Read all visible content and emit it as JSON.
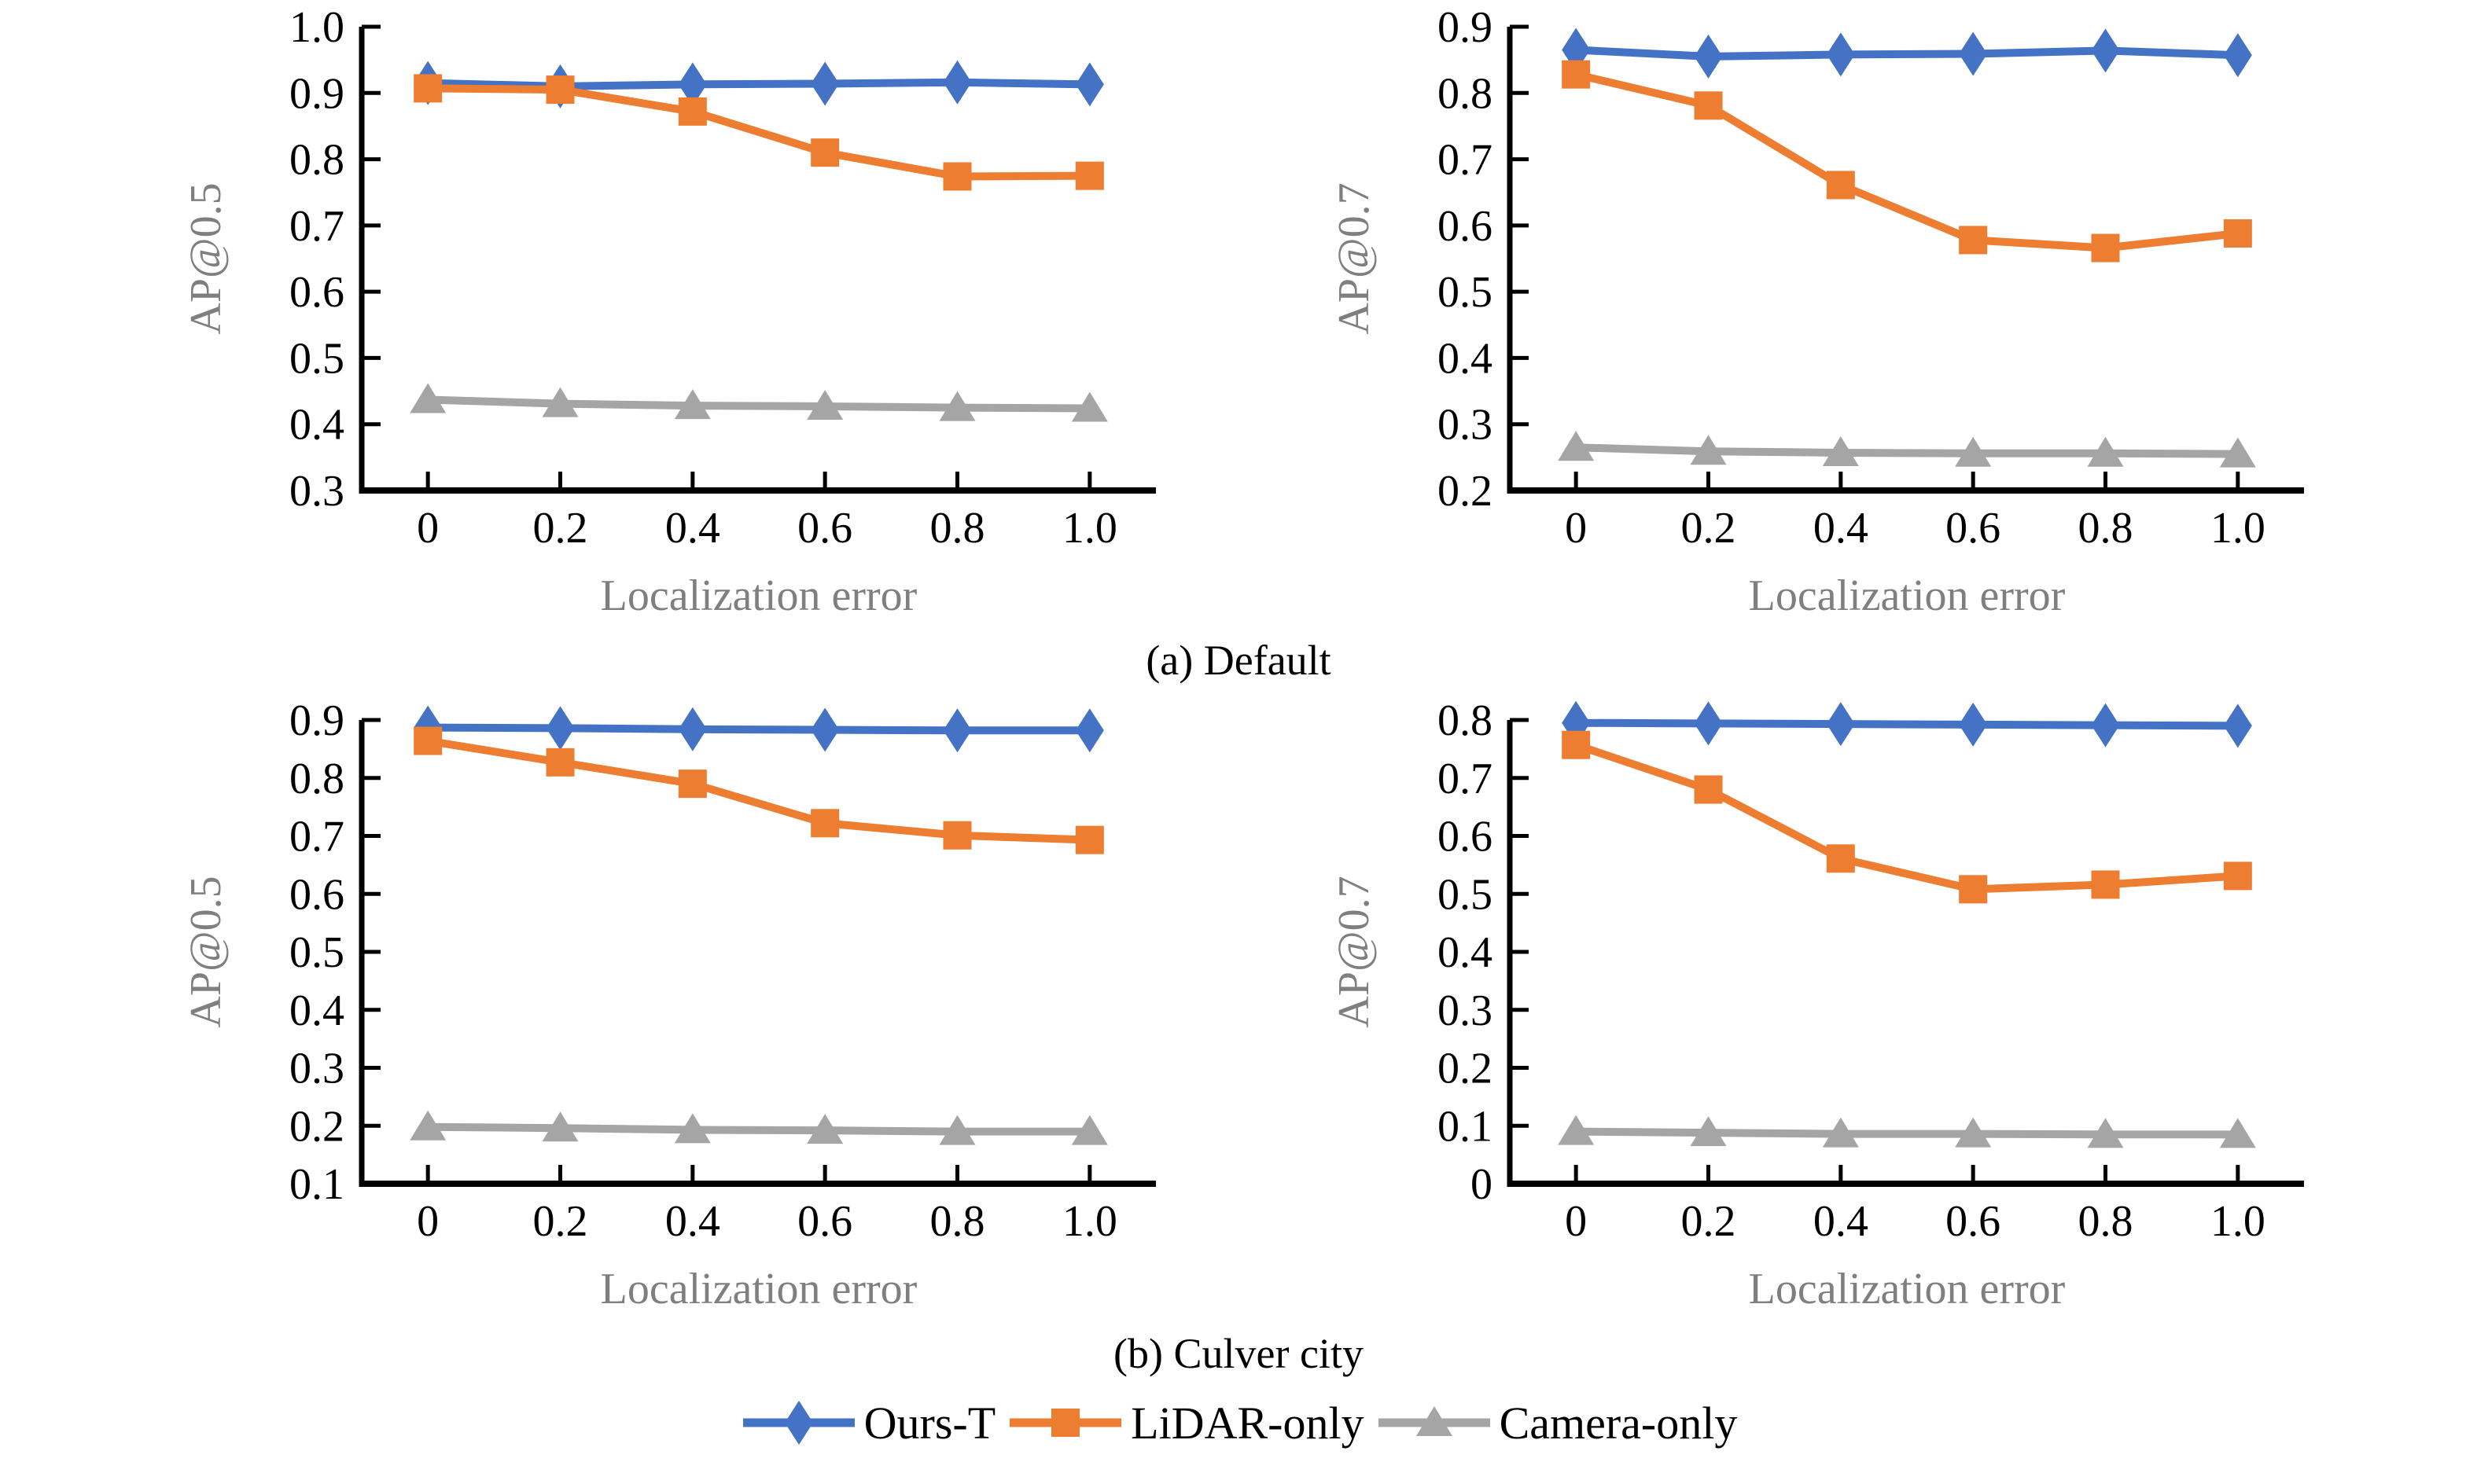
{
  "figure": {
    "captions": {
      "a": "(a) Default",
      "b": "(b) Culver city"
    },
    "legend": [
      {
        "name": "Ours-T",
        "marker": "diamond",
        "color": "#4472C4"
      },
      {
        "name": "LiDAR-only",
        "marker": "square",
        "color": "#ED7D31"
      },
      {
        "name": "Camera-only",
        "marker": "triangle",
        "color": "#A5A5A5"
      }
    ],
    "legend_position": "bottom"
  },
  "colors": {
    "axis": "#000000",
    "tick_label": "#000000",
    "axis_title": "#7F7F7F",
    "background": "#FFFFFF",
    "series_blue": "#4472C4",
    "series_orange": "#ED7D31",
    "series_gray": "#A5A5A5"
  },
  "chart_data": [
    {
      "type": "line",
      "panel": "(a) Default",
      "xlabel": "Localization error",
      "ylabel": "AP@0.5",
      "x": [
        0,
        0.2,
        0.4,
        0.6,
        0.8,
        1.0
      ],
      "xtick_labels": [
        "0",
        "0.2",
        "0.4",
        "0.6",
        "0.8",
        "1.0"
      ],
      "ylim": [
        0.3,
        1.0
      ],
      "ytick_step": 0.1,
      "grid": false,
      "series": [
        {
          "name": "Ours-T",
          "marker": "diamond",
          "color": "#4472C4",
          "values": [
            0.915,
            0.91,
            0.913,
            0.914,
            0.916,
            0.913
          ]
        },
        {
          "name": "LiDAR-only",
          "marker": "square",
          "color": "#ED7D31",
          "values": [
            0.907,
            0.905,
            0.872,
            0.81,
            0.774,
            0.775
          ]
        },
        {
          "name": "Camera-only",
          "marker": "triangle",
          "color": "#A5A5A5",
          "values": [
            0.437,
            0.431,
            0.428,
            0.427,
            0.425,
            0.424
          ]
        }
      ]
    },
    {
      "type": "line",
      "panel": "(a) Default",
      "xlabel": "Localization error",
      "ylabel": "AP@0.7",
      "x": [
        0,
        0.2,
        0.4,
        0.6,
        0.8,
        1.0
      ],
      "xtick_labels": [
        "0",
        "0.2",
        "0.4",
        "0.6",
        "0.8",
        "1.0"
      ],
      "ylim": [
        0.2,
        0.9
      ],
      "ytick_step": 0.1,
      "grid": false,
      "series": [
        {
          "name": "Ours-T",
          "marker": "diamond",
          "color": "#4472C4",
          "values": [
            0.865,
            0.855,
            0.858,
            0.859,
            0.864,
            0.857
          ]
        },
        {
          "name": "LiDAR-only",
          "marker": "square",
          "color": "#ED7D31",
          "values": [
            0.828,
            0.781,
            0.661,
            0.578,
            0.566,
            0.588
          ]
        },
        {
          "name": "Camera-only",
          "marker": "triangle",
          "color": "#A5A5A5",
          "values": [
            0.265,
            0.259,
            0.257,
            0.256,
            0.256,
            0.255
          ]
        }
      ]
    },
    {
      "type": "line",
      "panel": "(b) Culver city",
      "xlabel": "Localization error",
      "ylabel": "AP@0.5",
      "x": [
        0,
        0.2,
        0.4,
        0.6,
        0.8,
        1.0
      ],
      "xtick_labels": [
        "0",
        "0.2",
        "0.4",
        "0.6",
        "0.8",
        "1.0"
      ],
      "ylim": [
        0.1,
        0.9
      ],
      "ytick_step": 0.1,
      "grid": false,
      "series": [
        {
          "name": "Ours-T",
          "marker": "diamond",
          "color": "#4472C4",
          "values": [
            0.887,
            0.886,
            0.884,
            0.883,
            0.882,
            0.882
          ]
        },
        {
          "name": "LiDAR-only",
          "marker": "square",
          "color": "#ED7D31",
          "values": [
            0.864,
            0.827,
            0.79,
            0.722,
            0.701,
            0.693
          ]
        },
        {
          "name": "Camera-only",
          "marker": "triangle",
          "color": "#A5A5A5",
          "values": [
            0.198,
            0.196,
            0.193,
            0.192,
            0.19,
            0.19
          ]
        }
      ]
    },
    {
      "type": "line",
      "panel": "(b) Culver city",
      "xlabel": "Localization error",
      "ylabel": "AP@0.7",
      "x": [
        0,
        0.2,
        0.4,
        0.6,
        0.8,
        1.0
      ],
      "xtick_labels": [
        "0",
        "0.2",
        "0.4",
        "0.6",
        "0.8",
        "1.0"
      ],
      "ylim": [
        0,
        0.8
      ],
      "ytick_step": 0.1,
      "grid": false,
      "series": [
        {
          "name": "Ours-T",
          "marker": "diamond",
          "color": "#4472C4",
          "values": [
            0.795,
            0.794,
            0.793,
            0.792,
            0.791,
            0.79
          ]
        },
        {
          "name": "LiDAR-only",
          "marker": "square",
          "color": "#ED7D31",
          "values": [
            0.757,
            0.68,
            0.561,
            0.508,
            0.516,
            0.531
          ]
        },
        {
          "name": "Camera-only",
          "marker": "triangle",
          "color": "#A5A5A5",
          "values": [
            0.09,
            0.088,
            0.086,
            0.086,
            0.085,
            0.085
          ]
        }
      ]
    }
  ]
}
